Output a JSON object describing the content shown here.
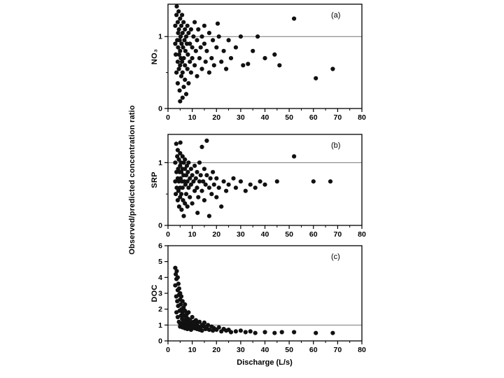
{
  "figure": {
    "x_axis_label": "Discharge (L/s)",
    "y_axis_label": "Observed/predicted concentration ratio",
    "point_color": "#111111",
    "frame_color": "#000000",
    "reference_line_color": "#777777"
  },
  "chart_data": [
    {
      "type": "scatter",
      "panel_label": "(a)",
      "ylabel": "NO₃",
      "xlim": [
        0,
        80
      ],
      "ylim": [
        0,
        1.45
      ],
      "xticks": [
        0,
        10,
        20,
        30,
        40,
        50,
        60,
        70,
        80
      ],
      "x_minor_step": 5,
      "yticks": [
        0,
        1
      ],
      "y_minor": [
        0.5
      ],
      "reference_line_y": 1,
      "points": [
        [
          3,
          0.9
        ],
        [
          3,
          1.15
        ],
        [
          3.2,
          0.75
        ],
        [
          3.5,
          1.3
        ],
        [
          3.5,
          0.5
        ],
        [
          3.6,
          1.42
        ],
        [
          3.8,
          0.95
        ],
        [
          4,
          1.2
        ],
        [
          4,
          0.65
        ],
        [
          4,
          0.35
        ],
        [
          4.2,
          1.05
        ],
        [
          4.2,
          0.85
        ],
        [
          4.4,
          1.35
        ],
        [
          4.5,
          0.55
        ],
        [
          4.5,
          1.1
        ],
        [
          4.6,
          0.75
        ],
        [
          4.8,
          0.95
        ],
        [
          4.8,
          0.25
        ],
        [
          5,
          1.25
        ],
        [
          5,
          0.8
        ],
        [
          5,
          0.6
        ],
        [
          5,
          0.1
        ],
        [
          5.2,
          1.0
        ],
        [
          5.3,
          0.7
        ],
        [
          5.5,
          1.15
        ],
        [
          5.5,
          0.45
        ],
        [
          5.6,
          0.9
        ],
        [
          5.8,
          1.3
        ],
        [
          5.8,
          0.65
        ],
        [
          6,
          1.05
        ],
        [
          6,
          0.5
        ],
        [
          6,
          0.15
        ],
        [
          6.2,
          0.85
        ],
        [
          6.4,
          1.2
        ],
        [
          6.5,
          0.7
        ],
        [
          6.5,
          0.3
        ],
        [
          6.8,
          0.95
        ],
        [
          7,
          1.1
        ],
        [
          7,
          0.6
        ],
        [
          7,
          0.4
        ],
        [
          7.2,
          0.8
        ],
        [
          7.5,
          1.0
        ],
        [
          7.5,
          0.2
        ],
        [
          7.8,
          0.9
        ],
        [
          8,
          1.15
        ],
        [
          8,
          0.55
        ],
        [
          8.2,
          0.75
        ],
        [
          8.5,
          1.05
        ],
        [
          8.5,
          0.35
        ],
        [
          9,
          0.9
        ],
        [
          9,
          0.65
        ],
        [
          9.5,
          1.1
        ],
        [
          9.5,
          0.5
        ],
        [
          10,
          0.85
        ],
        [
          10,
          0.7
        ],
        [
          10.5,
          1.0
        ],
        [
          11,
          0.6
        ],
        [
          11,
          1.2
        ],
        [
          11.5,
          0.8
        ],
        [
          12,
          0.95
        ],
        [
          12,
          0.45
        ],
        [
          12.5,
          1.1
        ],
        [
          13,
          0.7
        ],
        [
          13.5,
          0.85
        ],
        [
          14,
          1.0
        ],
        [
          14,
          0.55
        ],
        [
          15,
          0.9
        ],
        [
          15,
          1.15
        ],
        [
          15.5,
          0.65
        ],
        [
          16,
          0.8
        ],
        [
          17,
          1.05
        ],
        [
          17,
          0.5
        ],
        [
          18,
          0.7
        ],
        [
          18.5,
          0.95
        ],
        [
          19,
          0.6
        ],
        [
          20,
          0.85
        ],
        [
          20.5,
          1.18
        ],
        [
          21,
          1.0
        ],
        [
          22,
          0.65
        ],
        [
          23,
          0.8
        ],
        [
          24,
          0.55
        ],
        [
          25,
          0.95
        ],
        [
          26,
          0.7
        ],
        [
          28,
          0.85
        ],
        [
          30,
          1.0
        ],
        [
          31,
          0.6
        ],
        [
          33,
          0.62
        ],
        [
          35,
          0.8
        ],
        [
          37,
          1.0
        ],
        [
          40,
          0.7
        ],
        [
          44,
          0.75
        ],
        [
          46,
          0.6
        ],
        [
          52,
          1.25
        ],
        [
          61,
          0.42
        ],
        [
          68,
          0.55
        ]
      ]
    },
    {
      "type": "scatter",
      "panel_label": "(b)",
      "ylabel": "SRP",
      "xlim": [
        0,
        80
      ],
      "ylim": [
        0,
        1.45
      ],
      "xticks": [
        0,
        10,
        20,
        30,
        40,
        50,
        60,
        70,
        80
      ],
      "x_minor_step": 5,
      "yticks": [
        0,
        1
      ],
      "y_minor": [
        0.5
      ],
      "reference_line_y": 1,
      "points": [
        [
          3,
          0.7
        ],
        [
          3,
          1.0
        ],
        [
          3.2,
          0.5
        ],
        [
          3.4,
          1.3
        ],
        [
          3.5,
          0.85
        ],
        [
          3.6,
          0.6
        ],
        [
          3.8,
          1.1
        ],
        [
          4,
          0.75
        ],
        [
          4,
          0.4
        ],
        [
          4,
          1.2
        ],
        [
          4.2,
          0.9
        ],
        [
          4.3,
          0.55
        ],
        [
          4.5,
          1.05
        ],
        [
          4.5,
          0.7
        ],
        [
          4.6,
          0.3
        ],
        [
          4.8,
          0.85
        ],
        [
          5,
          1.15
        ],
        [
          5,
          0.6
        ],
        [
          5,
          0.45
        ],
        [
          5,
          0.95
        ],
        [
          5.1,
          1.32
        ],
        [
          5.2,
          0.75
        ],
        [
          5.4,
          1.0
        ],
        [
          5.5,
          0.5
        ],
        [
          5.5,
          0.85
        ],
        [
          5.6,
          0.25
        ],
        [
          5.8,
          0.7
        ],
        [
          6,
          1.1
        ],
        [
          6,
          0.6
        ],
        [
          6,
          0.9
        ],
        [
          6.2,
          0.4
        ],
        [
          6.4,
          0.8
        ],
        [
          6.5,
          1.0
        ],
        [
          6.5,
          0.15
        ],
        [
          6.8,
          0.7
        ],
        [
          7,
          0.9
        ],
        [
          7,
          0.35
        ],
        [
          7,
          1.05
        ],
        [
          7.2,
          0.65
        ],
        [
          7.5,
          0.8
        ],
        [
          7.5,
          0.5
        ],
        [
          7.8,
          0.95
        ],
        [
          8,
          0.7
        ],
        [
          8,
          0.3
        ],
        [
          8.2,
          0.85
        ],
        [
          8.5,
          0.6
        ],
        [
          8.5,
          1.0
        ],
        [
          9,
          0.75
        ],
        [
          9,
          0.45
        ],
        [
          9.5,
          0.9
        ],
        [
          9.5,
          0.65
        ],
        [
          10,
          0.8
        ],
        [
          10,
          0.35
        ],
        [
          10.5,
          0.7
        ],
        [
          11,
          0.95
        ],
        [
          11,
          0.55
        ],
        [
          11.5,
          0.75
        ],
        [
          12,
          0.6
        ],
        [
          12,
          0.85
        ],
        [
          12.2,
          0.2
        ],
        [
          12.5,
          0.45
        ],
        [
          13,
          0.7
        ],
        [
          13,
          1.0
        ],
        [
          13.5,
          0.8
        ],
        [
          14,
          0.55
        ],
        [
          14,
          1.25
        ],
        [
          14.5,
          0.7
        ],
        [
          15,
          0.9
        ],
        [
          15,
          0.4
        ],
        [
          15.5,
          0.65
        ],
        [
          16,
          0.8
        ],
        [
          16,
          1.35
        ],
        [
          17,
          0.6
        ],
        [
          17,
          0.15
        ],
        [
          17.5,
          0.75
        ],
        [
          18,
          0.5
        ],
        [
          18.5,
          0.85
        ],
        [
          19,
          0.65
        ],
        [
          20,
          0.45
        ],
        [
          20,
          0.75
        ],
        [
          21,
          0.6
        ],
        [
          22,
          0.3
        ],
        [
          23,
          0.7
        ],
        [
          24,
          0.55
        ],
        [
          25,
          0.65
        ],
        [
          27,
          0.75
        ],
        [
          28,
          0.6
        ],
        [
          30,
          0.7
        ],
        [
          32,
          0.55
        ],
        [
          34,
          0.65
        ],
        [
          36,
          0.6
        ],
        [
          38,
          0.7
        ],
        [
          40,
          0.65
        ],
        [
          45,
          0.7
        ],
        [
          52,
          1.1
        ],
        [
          60,
          0.7
        ],
        [
          67,
          0.7
        ]
      ]
    },
    {
      "type": "scatter",
      "panel_label": "(c)",
      "ylabel": "DOC",
      "xlim": [
        0,
        80
      ],
      "ylim": [
        0,
        6
      ],
      "xticks": [
        0,
        10,
        20,
        30,
        40,
        50,
        60,
        70,
        80
      ],
      "x_minor_step": 5,
      "yticks": [
        0,
        1,
        2,
        3,
        4,
        5,
        6
      ],
      "y_minor": [],
      "reference_line_y": 1,
      "points": [
        [
          3,
          4.6
        ],
        [
          3,
          3.5
        ],
        [
          3.2,
          4.2
        ],
        [
          3.4,
          2.8
        ],
        [
          3.5,
          3.9
        ],
        [
          3.5,
          1.8
        ],
        [
          3.6,
          4.4
        ],
        [
          3.8,
          2.5
        ],
        [
          4,
          3.2
        ],
        [
          4,
          1.5
        ],
        [
          4,
          4.0
        ],
        [
          4.2,
          2.2
        ],
        [
          4.3,
          3.6
        ],
        [
          4.5,
          1.2
        ],
        [
          4.5,
          2.9
        ],
        [
          4.6,
          3.3
        ],
        [
          4.8,
          1.9
        ],
        [
          5,
          2.6
        ],
        [
          5,
          1.1
        ],
        [
          5,
          3.0
        ],
        [
          5,
          0.9
        ],
        [
          5.2,
          2.3
        ],
        [
          5.4,
          1.6
        ],
        [
          5.5,
          2.8
        ],
        [
          5.5,
          1.0
        ],
        [
          5.6,
          2.0
        ],
        [
          5.8,
          1.4
        ],
        [
          6,
          2.5
        ],
        [
          6,
          0.85
        ],
        [
          6,
          1.8
        ],
        [
          6.2,
          1.2
        ],
        [
          6.4,
          2.1
        ],
        [
          6.5,
          0.95
        ],
        [
          6.5,
          1.6
        ],
        [
          6.8,
          1.3
        ],
        [
          7,
          1.9
        ],
        [
          7,
          0.8
        ],
        [
          7,
          2.3
        ],
        [
          7.2,
          1.1
        ],
        [
          7.5,
          1.5
        ],
        [
          7.5,
          0.9
        ],
        [
          7.8,
          1.7
        ],
        [
          8,
          1.2
        ],
        [
          8,
          0.75
        ],
        [
          8.2,
          1.4
        ],
        [
          8.5,
          1.0
        ],
        [
          8.5,
          1.8
        ],
        [
          9,
          0.85
        ],
        [
          9,
          1.3
        ],
        [
          9.5,
          1.1
        ],
        [
          9.5,
          0.7
        ],
        [
          10,
          1.5
        ],
        [
          10,
          0.9
        ],
        [
          10.5,
          1.2
        ],
        [
          11,
          0.8
        ],
        [
          11,
          1.0
        ],
        [
          11.5,
          1.3
        ],
        [
          12,
          0.75
        ],
        [
          12,
          1.1
        ],
        [
          12.5,
          0.9
        ],
        [
          13,
          0.7
        ],
        [
          13,
          1.2
        ],
        [
          13.5,
          0.85
        ],
        [
          14,
          1.0
        ],
        [
          14,
          0.65
        ],
        [
          15,
          0.9
        ],
        [
          15,
          1.15
        ],
        [
          15.5,
          0.75
        ],
        [
          16,
          0.85
        ],
        [
          16.5,
          1.0
        ],
        [
          17,
          0.7
        ],
        [
          18,
          0.9
        ],
        [
          18.5,
          0.65
        ],
        [
          19,
          0.8
        ],
        [
          20,
          0.7
        ],
        [
          21,
          0.85
        ],
        [
          22,
          0.6
        ],
        [
          23,
          0.75
        ],
        [
          24,
          0.65
        ],
        [
          25,
          0.7
        ],
        [
          26,
          0.55
        ],
        [
          28,
          0.6
        ],
        [
          30,
          0.65
        ],
        [
          32,
          0.55
        ],
        [
          34,
          0.6
        ],
        [
          36,
          0.5
        ],
        [
          40,
          0.55
        ],
        [
          44,
          0.5
        ],
        [
          47,
          0.55
        ],
        [
          52,
          0.55
        ],
        [
          61,
          0.5
        ],
        [
          68,
          0.5
        ]
      ]
    }
  ]
}
